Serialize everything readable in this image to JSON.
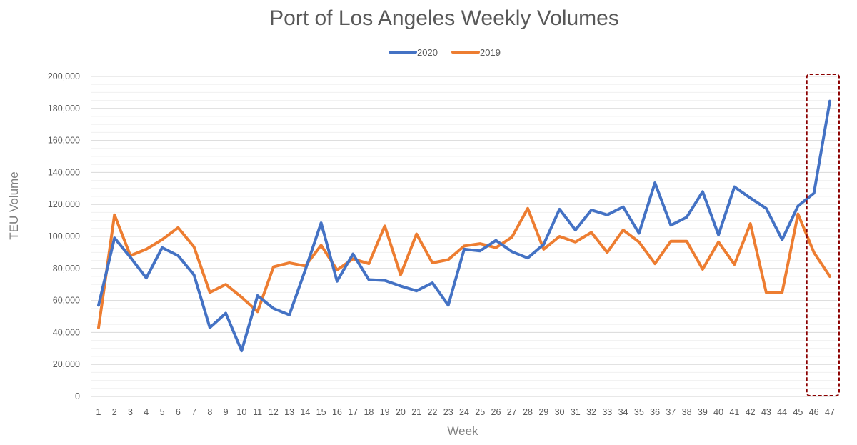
{
  "chart_data": {
    "type": "line",
    "title": "Port of Los Angeles Weekly Volumes",
    "xlabel": "Week",
    "ylabel": "TEU Volume",
    "categories": [
      "1",
      "2",
      "3",
      "4",
      "5",
      "6",
      "7",
      "8",
      "9",
      "10",
      "11",
      "12",
      "13",
      "14",
      "15",
      "16",
      "17",
      "18",
      "19",
      "20",
      "21",
      "22",
      "23",
      "24",
      "25",
      "26",
      "27",
      "28",
      "29",
      "30",
      "31",
      "32",
      "33",
      "34",
      "35",
      "36",
      "37",
      "38",
      "39",
      "40",
      "41",
      "42",
      "43",
      "44",
      "45",
      "46",
      "47"
    ],
    "y_ticks": [
      "0",
      "20,000",
      "40,000",
      "60,000",
      "80,000",
      "100,000",
      "120,000",
      "140,000",
      "160,000",
      "180,000",
      "200,000"
    ],
    "ylim": [
      0,
      200000
    ],
    "grid": true,
    "legend_position": "top",
    "series": [
      {
        "name": "2020",
        "color": "#4472c4",
        "values": [
          57000,
          99000,
          87000,
          74000,
          93000,
          88000,
          76000,
          43000,
          52000,
          28500,
          63000,
          55000,
          51000,
          79000,
          108500,
          72000,
          89000,
          73000,
          72500,
          69000,
          66000,
          71000,
          57000,
          92000,
          91000,
          97500,
          90500,
          86500,
          95000,
          117000,
          104000,
          116500,
          113500,
          118500,
          102000,
          133500,
          107000,
          112000,
          128000,
          101000,
          131000,
          124000,
          117500,
          98000,
          119000,
          127000,
          184500
        ]
      },
      {
        "name": "2019",
        "color": "#ed7d31",
        "values": [
          43000,
          113500,
          88000,
          92000,
          98000,
          105500,
          93500,
          65000,
          70000,
          62000,
          53000,
          81000,
          83500,
          81500,
          94500,
          79000,
          86000,
          83000,
          106500,
          76000,
          101500,
          83500,
          85500,
          94000,
          95500,
          93000,
          99500,
          117500,
          92000,
          100000,
          96500,
          102500,
          90000,
          104000,
          96500,
          83000,
          97000,
          97000,
          79500,
          96500,
          82500,
          108000,
          65000,
          65000,
          114000,
          90000,
          75000
        ]
      }
    ],
    "highlight": {
      "from_category": "46",
      "to_category": "47",
      "color": "#8b0000"
    }
  }
}
